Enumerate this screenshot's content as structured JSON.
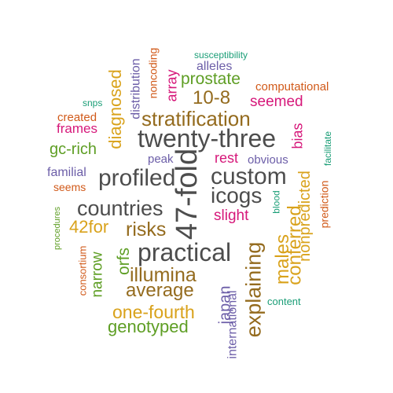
{
  "colors": {
    "dark_gray": "#4d4d4d",
    "brown": "#946b1e",
    "gold": "#d9a21b",
    "green": "#5e9e24",
    "magenta": "#d6187a",
    "purple": "#6c5ea8",
    "orange": "#d15a1a",
    "teal": "#1b9e77"
  },
  "words": [
    "twenty-three",
    "47-fold",
    "practical",
    "profiled",
    "custom",
    "icogs",
    "countries",
    "stratification",
    "risks",
    "illumina",
    "explaining",
    "average",
    "10-8",
    "conferred",
    "nonpredicted",
    "males",
    "prostate",
    "diagnosed",
    "one-fourth",
    "genotyped",
    "orfs",
    "42for",
    "seemed",
    "gc-rich",
    "japan",
    "narrow",
    "slight",
    "rest",
    "international",
    "bias",
    "frames",
    "created",
    "familial",
    "seems",
    "distribution",
    "array",
    "computational",
    "alleles",
    "peak",
    "obvious",
    "noncoding",
    "susceptibility",
    "snps",
    "facilitate",
    "prediction",
    "blood",
    "procedures",
    "consortium",
    "content"
  ]
}
